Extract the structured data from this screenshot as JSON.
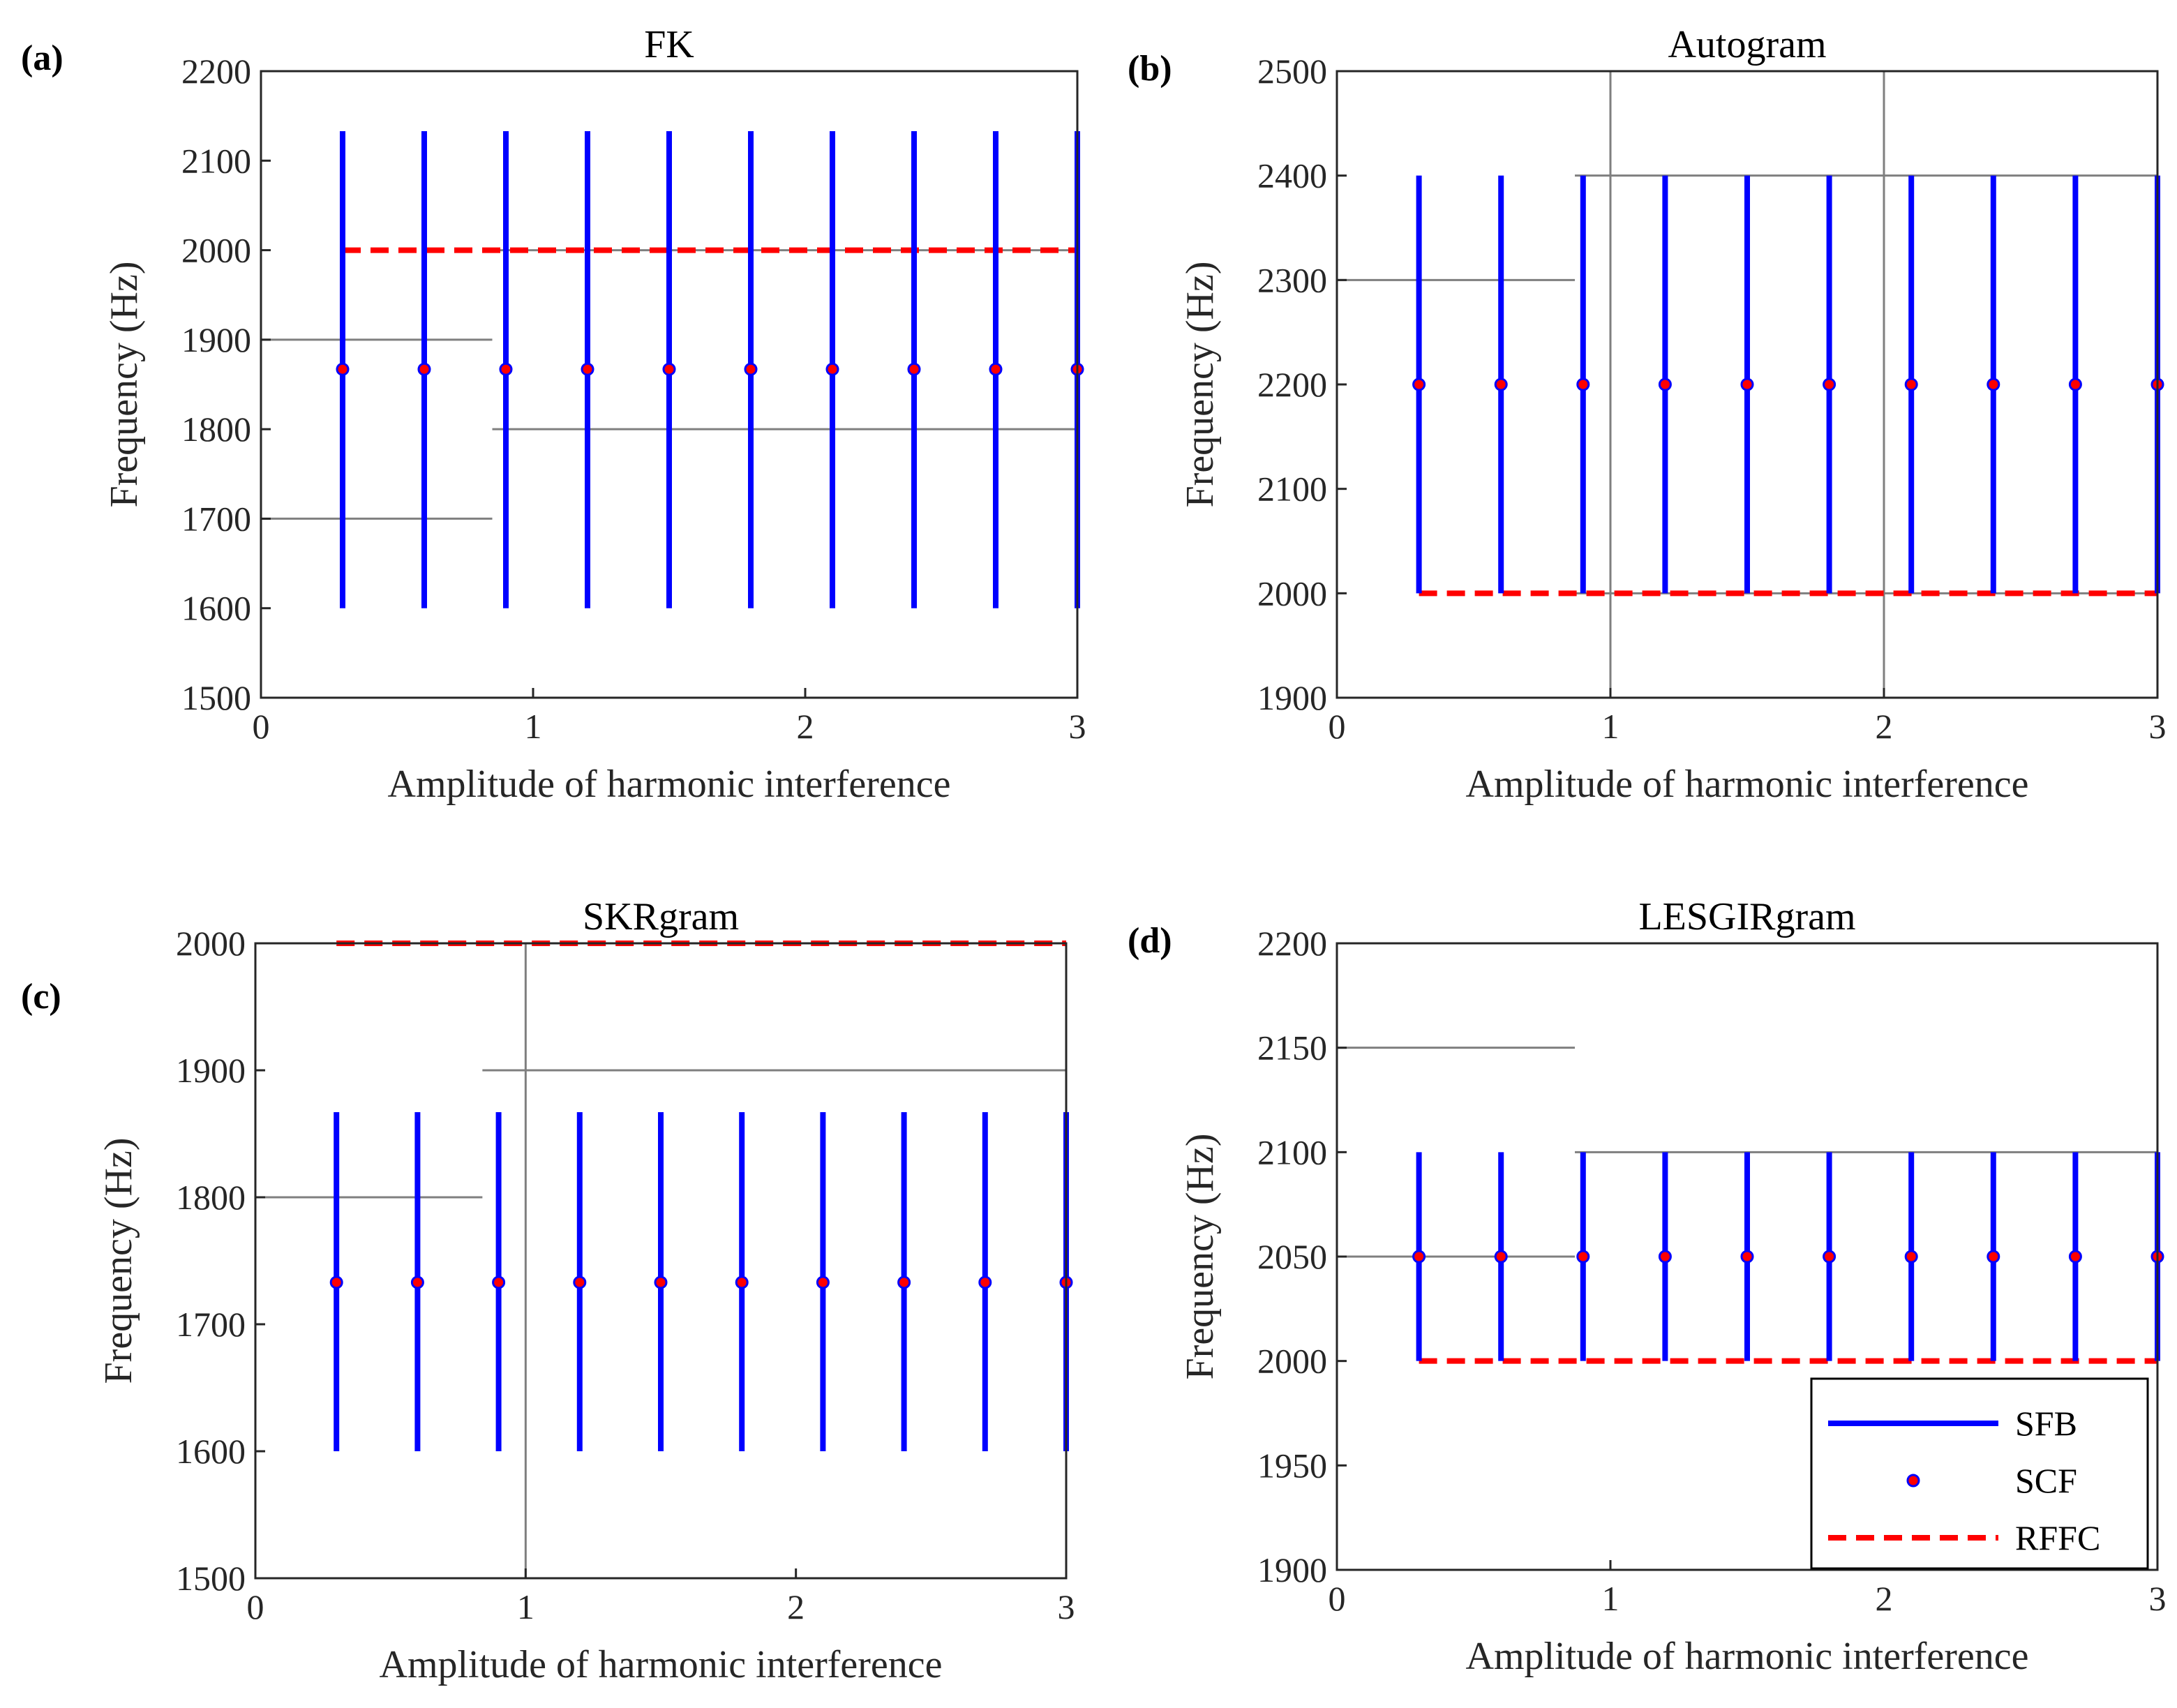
{
  "chart_data": [
    {
      "type": "errorbar",
      "panel_label": "(a)",
      "title": "FK",
      "xlabel": "Amplitude of harmonic interference",
      "ylabel": "Frequency (Hz)",
      "xlim": [
        0,
        3
      ],
      "ylim": [
        1500,
        2200
      ],
      "xticks": [
        0,
        1,
        2,
        3
      ],
      "xtick_labels": [
        "0",
        "1",
        "2",
        "3"
      ],
      "yticks": [
        1500,
        1600,
        1700,
        1800,
        1900,
        2000,
        2100,
        2200
      ],
      "ytick_labels": [
        "1500",
        "1600",
        "1700",
        "1800",
        "1900",
        "2000",
        "2100",
        "2200"
      ],
      "grid_lines": [
        {
          "orientation": "h",
          "value": 1900,
          "from": 0,
          "to": 0.85
        },
        {
          "orientation": "h",
          "value": 1700,
          "from": 0,
          "to": 0.85
        },
        {
          "orientation": "h",
          "value": 2000,
          "from": 0.85,
          "to": 3
        },
        {
          "orientation": "h",
          "value": 1800,
          "from": 0.85,
          "to": 3
        },
        {
          "orientation": "v",
          "value": 3,
          "from": 1500,
          "to": 2200
        }
      ],
      "x": [
        0.3,
        0.6,
        0.9,
        1.2,
        1.5,
        1.8,
        2.1,
        2.4,
        2.7,
        3.0
      ],
      "series": [
        {
          "name": "SFB",
          "low": [
            1600,
            1600,
            1600,
            1600,
            1600,
            1600,
            1600,
            1600,
            1600,
            1600
          ],
          "high": [
            2133,
            2133,
            2133,
            2133,
            2133,
            2133,
            2133,
            2133,
            2133,
            2133
          ]
        },
        {
          "name": "SCF",
          "values": [
            1867,
            1867,
            1867,
            1867,
            1867,
            1867,
            1867,
            1867,
            1867,
            1867
          ]
        },
        {
          "name": "RFFC",
          "value": 2000,
          "x_range": [
            0.3,
            3.0
          ]
        }
      ]
    },
    {
      "type": "errorbar",
      "panel_label": "(b)",
      "title": "Autogram",
      "xlabel": "Amplitude of harmonic interference",
      "ylabel": "Frequency (Hz)",
      "xlim": [
        0,
        3
      ],
      "ylim": [
        1900,
        2500
      ],
      "xticks": [
        0,
        1,
        2,
        3
      ],
      "xtick_labels": [
        "0",
        "1",
        "2",
        "3"
      ],
      "yticks": [
        1900,
        2000,
        2100,
        2200,
        2300,
        2400,
        2500
      ],
      "ytick_labels": [
        "1900",
        "2000",
        "2100",
        "2200",
        "2300",
        "2400",
        "2500"
      ],
      "grid_lines": [
        {
          "orientation": "h",
          "value": 2300,
          "from": 0,
          "to": 0.87
        },
        {
          "orientation": "h",
          "value": 2400,
          "from": 0.87,
          "to": 3
        },
        {
          "orientation": "h",
          "value": 2000,
          "from": 0.87,
          "to": 3
        },
        {
          "orientation": "v",
          "value": 1,
          "from": 1900,
          "to": 2500
        },
        {
          "orientation": "v",
          "value": 2,
          "from": 1900,
          "to": 2500
        }
      ],
      "x": [
        0.3,
        0.6,
        0.9,
        1.2,
        1.5,
        1.8,
        2.1,
        2.4,
        2.7,
        3.0
      ],
      "series": [
        {
          "name": "SFB",
          "low": [
            2000,
            2000,
            2000,
            2000,
            2000,
            2000,
            2000,
            2000,
            2000,
            2000
          ],
          "high": [
            2400,
            2400,
            2400,
            2400,
            2400,
            2400,
            2400,
            2400,
            2400,
            2400
          ]
        },
        {
          "name": "SCF",
          "values": [
            2200,
            2200,
            2200,
            2200,
            2200,
            2200,
            2200,
            2200,
            2200,
            2200
          ]
        },
        {
          "name": "RFFC",
          "value": 2000,
          "x_range": [
            0.3,
            3.0
          ]
        }
      ]
    },
    {
      "type": "errorbar",
      "panel_label": "(c)",
      "title": "SKRgram",
      "xlabel": "Amplitude of harmonic interference",
      "ylabel": "Frequency (Hz)",
      "xlim": [
        0,
        3
      ],
      "ylim": [
        1500,
        2000
      ],
      "xticks": [
        0,
        1,
        2,
        3
      ],
      "xtick_labels": [
        "0",
        "1",
        "2",
        "3"
      ],
      "yticks": [
        1500,
        1600,
        1700,
        1800,
        1900,
        2000
      ],
      "ytick_labels": [
        "1500",
        "1600",
        "1700",
        "1800",
        "1900",
        "2000"
      ],
      "grid_lines": [
        {
          "orientation": "h",
          "value": 1800,
          "from": 0,
          "to": 0.84
        },
        {
          "orientation": "h",
          "value": 1900,
          "from": 0.84,
          "to": 3
        },
        {
          "orientation": "v",
          "value": 1,
          "from": 1500,
          "to": 2000
        }
      ],
      "x": [
        0.3,
        0.6,
        0.9,
        1.2,
        1.5,
        1.8,
        2.1,
        2.4,
        2.7,
        3.0
      ],
      "series": [
        {
          "name": "SFB",
          "low": [
            1600,
            1600,
            1600,
            1600,
            1600,
            1600,
            1600,
            1600,
            1600,
            1600
          ],
          "high": [
            1867,
            1867,
            1867,
            1867,
            1867,
            1867,
            1867,
            1867,
            1867,
            1867
          ]
        },
        {
          "name": "SCF",
          "values": [
            1733,
            1733,
            1733,
            1733,
            1733,
            1733,
            1733,
            1733,
            1733,
            1733
          ]
        },
        {
          "name": "RFFC",
          "value": 2000,
          "x_range": [
            0.3,
            3.0
          ]
        }
      ]
    },
    {
      "type": "errorbar",
      "panel_label": "(d)",
      "title": "LESGIRgram",
      "xlabel": "Amplitude of harmonic interference",
      "ylabel": "Frequency (Hz)",
      "xlim": [
        0,
        3
      ],
      "ylim": [
        1900,
        2200
      ],
      "xticks": [
        0,
        1,
        2,
        3
      ],
      "xtick_labels": [
        "0",
        "1",
        "2",
        "3"
      ],
      "yticks": [
        1900,
        1950,
        2000,
        2050,
        2100,
        2150,
        2200
      ],
      "ytick_labels": [
        "1900",
        "1950",
        "2000",
        "2050",
        "2100",
        "2150",
        "2200"
      ],
      "grid_lines": [
        {
          "orientation": "h",
          "value": 2150,
          "from": 0,
          "to": 0.87
        },
        {
          "orientation": "h",
          "value": 2050,
          "from": 0,
          "to": 0.87
        },
        {
          "orientation": "h",
          "value": 2100,
          "from": 0.87,
          "to": 3
        }
      ],
      "x": [
        0.3,
        0.6,
        0.9,
        1.2,
        1.5,
        1.8,
        2.1,
        2.4,
        2.7,
        3.0
      ],
      "series": [
        {
          "name": "SFB",
          "low": [
            2000,
            2000,
            2000,
            2000,
            2000,
            2000,
            2000,
            2000,
            2000,
            2000
          ],
          "high": [
            2100,
            2100,
            2100,
            2100,
            2100,
            2100,
            2100,
            2100,
            2100,
            2100
          ]
        },
        {
          "name": "SCF",
          "values": [
            2050,
            2050,
            2050,
            2050,
            2050,
            2050,
            2050,
            2050,
            2050,
            2050
          ]
        },
        {
          "name": "RFFC",
          "value": 2000,
          "x_range": [
            0.3,
            3.0
          ]
        }
      ],
      "legend": {
        "placement": "bottom-right",
        "entries": [
          {
            "label": "SFB",
            "style": "solid-line"
          },
          {
            "label": "SCF",
            "style": "marker"
          },
          {
            "label": "RFFC",
            "style": "dashed-line"
          }
        ]
      }
    }
  ],
  "colors": {
    "sfb": "#0000ff",
    "scf_face": "#ff0000",
    "scf_edge": "#0000ff",
    "rffc": "#ff0000",
    "grid": "#7f7f7f",
    "axes": "#262626"
  }
}
